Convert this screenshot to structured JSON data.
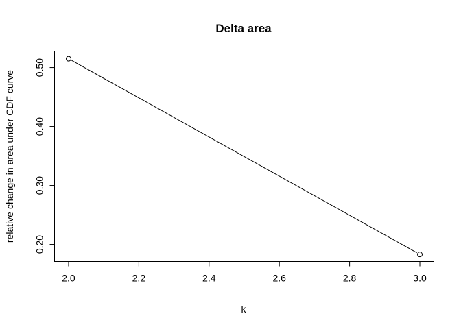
{
  "chart_data": {
    "type": "line",
    "title": "Delta area",
    "xlabel": "k",
    "ylabel": "relative change in area under CDF curve",
    "x": [
      2.0,
      3.0
    ],
    "series": [
      {
        "values": [
          0.515,
          0.183
        ]
      }
    ],
    "xlim": [
      1.96,
      3.04
    ],
    "ylim": [
      0.171,
      0.528
    ],
    "xticks": [
      "2.0",
      "2.2",
      "2.4",
      "2.6",
      "2.8",
      "3.0"
    ],
    "yticks": [
      "0.20",
      "0.30",
      "0.40",
      "0.50"
    ],
    "markers": "open-circle",
    "grid": false,
    "legend": "none"
  }
}
